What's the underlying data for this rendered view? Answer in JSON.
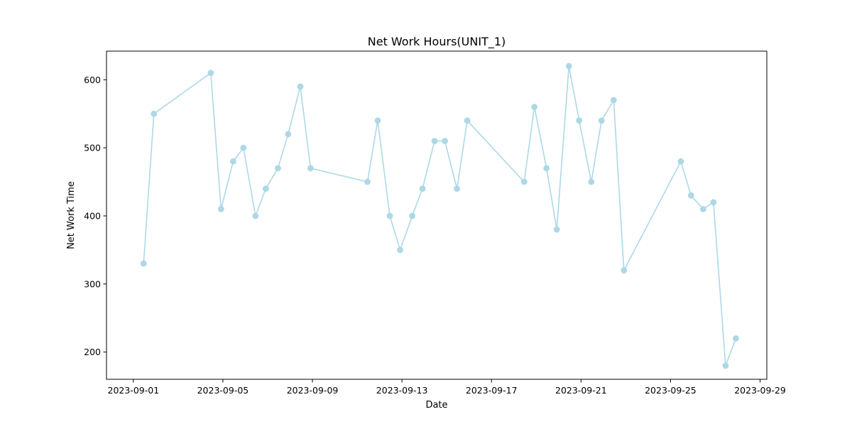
{
  "chart_data": {
    "type": "line",
    "title": "Net Work Hours(UNIT_1)",
    "xlabel": "Date",
    "ylabel": "Net Work Time",
    "x_ticks": [
      "2023-09-01",
      "2023-09-05",
      "2023-09-09",
      "2023-09-13",
      "2023-09-17",
      "2023-09-21",
      "2023-09-25",
      "2023-09-29"
    ],
    "y_ticks": [
      200,
      300,
      400,
      500,
      600
    ],
    "ylim": [
      160,
      642
    ],
    "xlim": [
      "2023-08-30T19:12",
      "2023-09-29T07:12"
    ],
    "grid": false,
    "series": [
      {
        "color": "#add8e6",
        "marker": "circle",
        "points": [
          {
            "x": "2023-09-01T11:00",
            "y": 330
          },
          {
            "x": "2023-09-01T22:00",
            "y": 550
          },
          {
            "x": "2023-09-04T11:00",
            "y": 610
          },
          {
            "x": "2023-09-04T22:00",
            "y": 410
          },
          {
            "x": "2023-09-05T11:00",
            "y": 480
          },
          {
            "x": "2023-09-05T22:00",
            "y": 500
          },
          {
            "x": "2023-09-06T11:00",
            "y": 400
          },
          {
            "x": "2023-09-06T22:00",
            "y": 440
          },
          {
            "x": "2023-09-07T11:00",
            "y": 470
          },
          {
            "x": "2023-09-07T22:00",
            "y": 520
          },
          {
            "x": "2023-09-08T11:00",
            "y": 590
          },
          {
            "x": "2023-09-08T22:00",
            "y": 470
          },
          {
            "x": "2023-09-11T11:00",
            "y": 450
          },
          {
            "x": "2023-09-11T22:00",
            "y": 540
          },
          {
            "x": "2023-09-12T11:00",
            "y": 400
          },
          {
            "x": "2023-09-12T22:00",
            "y": 350
          },
          {
            "x": "2023-09-13T11:00",
            "y": 400
          },
          {
            "x": "2023-09-13T22:00",
            "y": 440
          },
          {
            "x": "2023-09-14T11:00",
            "y": 510
          },
          {
            "x": "2023-09-14T22:00",
            "y": 510
          },
          {
            "x": "2023-09-15T11:00",
            "y": 440
          },
          {
            "x": "2023-09-15T22:00",
            "y": 540
          },
          {
            "x": "2023-09-18T11:00",
            "y": 450
          },
          {
            "x": "2023-09-18T22:00",
            "y": 560
          },
          {
            "x": "2023-09-19T11:00",
            "y": 470
          },
          {
            "x": "2023-09-19T22:00",
            "y": 380
          },
          {
            "x": "2023-09-20T11:00",
            "y": 620
          },
          {
            "x": "2023-09-20T22:00",
            "y": 540
          },
          {
            "x": "2023-09-21T11:00",
            "y": 450
          },
          {
            "x": "2023-09-21T22:00",
            "y": 540
          },
          {
            "x": "2023-09-22T11:00",
            "y": 570
          },
          {
            "x": "2023-09-22T22:00",
            "y": 320
          },
          {
            "x": "2023-09-25T11:00",
            "y": 480
          },
          {
            "x": "2023-09-25T22:00",
            "y": 430
          },
          {
            "x": "2023-09-26T11:00",
            "y": 410
          },
          {
            "x": "2023-09-26T22:00",
            "y": 420
          },
          {
            "x": "2023-09-27T11:00",
            "y": 180
          },
          {
            "x": "2023-09-27T22:00",
            "y": 220
          }
        ]
      }
    ]
  }
}
